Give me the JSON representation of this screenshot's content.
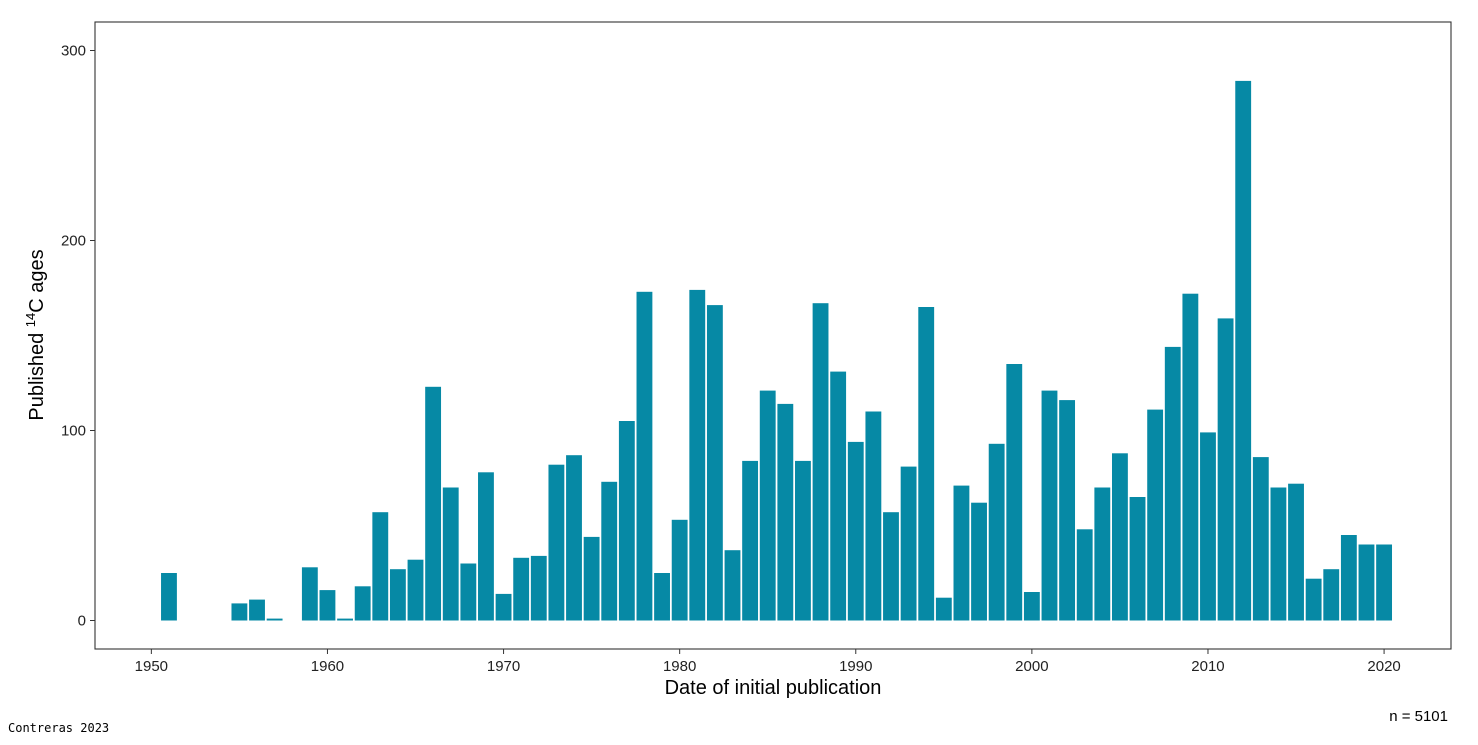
{
  "chart_data": {
    "type": "bar",
    "xlabel": "Date of initial publication",
    "ylabel_prefix": "Published ",
    "ylabel_superscript": "14",
    "ylabel_suffix": "C ages",
    "xlim": [
      1946.8,
      2023.8
    ],
    "ylim": [
      -15,
      315
    ],
    "x_ticks": [
      1950,
      1960,
      1970,
      1980,
      1990,
      2000,
      2010,
      2020
    ],
    "y_ticks": [
      0,
      100,
      200,
      300
    ],
    "bar_color": "#0689a5",
    "grid": false,
    "annotation": "n = 5101",
    "x": [
      1951,
      1955,
      1956,
      1957,
      1959,
      1960,
      1961,
      1962,
      1963,
      1964,
      1965,
      1966,
      1967,
      1968,
      1969,
      1970,
      1971,
      1972,
      1973,
      1974,
      1975,
      1976,
      1977,
      1978,
      1979,
      1980,
      1981,
      1982,
      1983,
      1984,
      1985,
      1986,
      1987,
      1988,
      1989,
      1990,
      1991,
      1992,
      1993,
      1994,
      1995,
      1996,
      1997,
      1998,
      1999,
      2000,
      2001,
      2002,
      2003,
      2004,
      2005,
      2006,
      2007,
      2008,
      2009,
      2010,
      2011,
      2012,
      2013,
      2014,
      2015,
      2016,
      2017,
      2018,
      2019,
      2020
    ],
    "values": [
      25,
      9,
      11,
      1,
      28,
      16,
      1,
      18,
      57,
      27,
      32,
      123,
      70,
      30,
      78,
      14,
      33,
      34,
      82,
      87,
      44,
      73,
      105,
      173,
      25,
      53,
      174,
      166,
      37,
      84,
      121,
      114,
      84,
      167,
      131,
      94,
      110,
      57,
      81,
      165,
      12,
      71,
      62,
      93,
      135,
      15,
      121,
      116,
      48,
      70,
      88,
      65,
      111,
      144,
      172,
      99,
      159,
      284,
      86,
      70,
      72,
      22,
      27,
      45,
      40,
      40
    ]
  },
  "credit": "Contreras 2023"
}
